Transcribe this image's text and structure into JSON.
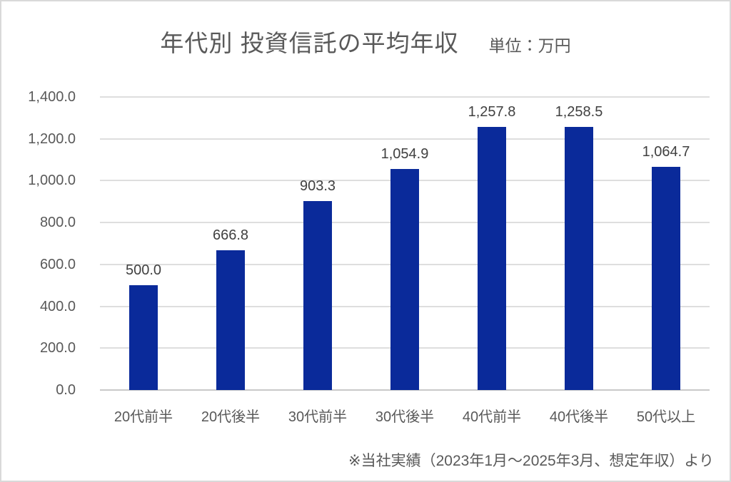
{
  "chart_data": {
    "type": "bar",
    "title": "年代別 投資信託の平均年収",
    "unit_label": "単位：万円",
    "categories": [
      "20代前半",
      "20代後半",
      "30代前半",
      "30代後半",
      "40代前半",
      "40代後半",
      "50代以上"
    ],
    "values": [
      500.0,
      666.8,
      903.3,
      1054.9,
      1257.8,
      1258.5,
      1064.7
    ],
    "data_labels": [
      "500.0",
      "666.8",
      "903.3",
      "1,054.9",
      "1,257.8",
      "1,258.5",
      "1,064.7"
    ],
    "xlabel": "",
    "ylabel": "",
    "ylim": [
      0,
      1400
    ],
    "y_tick_step": 200,
    "y_tick_labels": [
      "0.0",
      "200.0",
      "400.0",
      "600.0",
      "800.0",
      "1,000.0",
      "1,200.0",
      "1,400.0"
    ],
    "grid": true,
    "legend": "none",
    "footnote": "※当社実績（2023年1月～2025年3月、想定年収）より",
    "bar_color": "#0a2a9a",
    "grid_color": "#dedede",
    "axis_text_color": "#595959",
    "data_label_color": "#404040",
    "frame_border_color": "#d9d9d9"
  }
}
